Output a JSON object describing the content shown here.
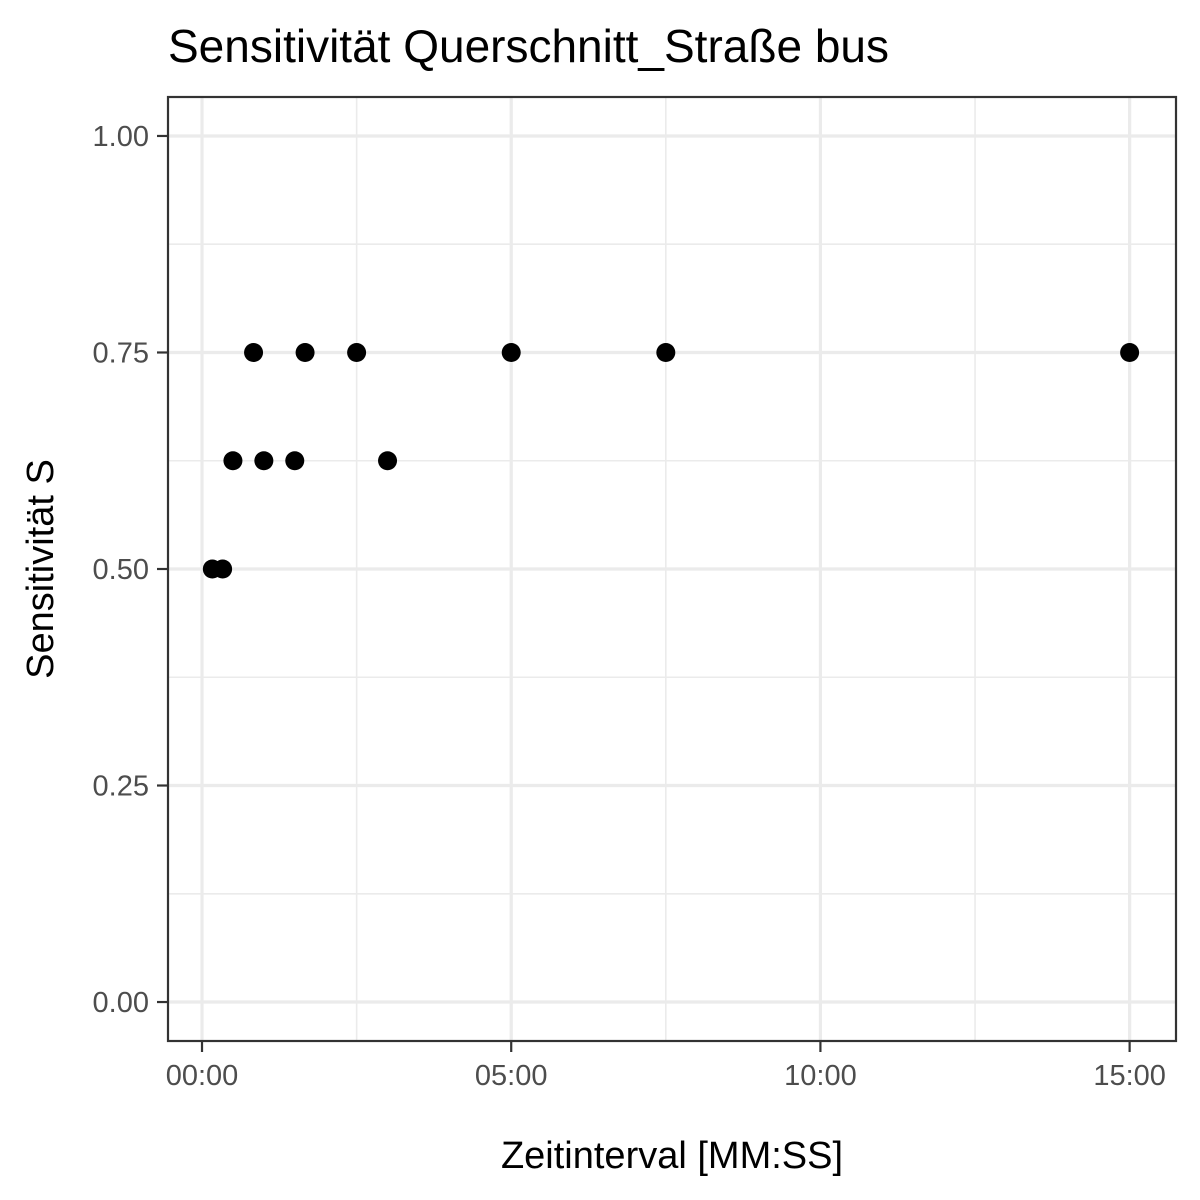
{
  "chart_data": {
    "type": "scatter",
    "title": "Sensitivität Querschnitt_Straße bus",
    "xlabel": "Zeitinterval [MM:SS]",
    "ylabel": "Sensitivität S",
    "x_unit": "MM:SS",
    "xlim": [
      "-00:33",
      "15:45"
    ],
    "ylim": [
      -0.045,
      1.045
    ],
    "x_ticks": [
      "00:00",
      "05:00",
      "10:00",
      "15:00"
    ],
    "x_minor_ticks": [
      "02:30",
      "07:30",
      "12:30"
    ],
    "y_ticks": [
      0.0,
      0.25,
      0.5,
      0.75,
      1.0
    ],
    "y_tick_labels": [
      "0.00",
      "0.25",
      "0.50",
      "0.75",
      "1.00"
    ],
    "y_minor_ticks": [
      0.125,
      0.375,
      0.625,
      0.875
    ],
    "grid": true,
    "legend": "none",
    "point_color": "#000000",
    "points": [
      {
        "x": "00:10",
        "y": 0.5
      },
      {
        "x": "00:20",
        "y": 0.5
      },
      {
        "x": "00:30",
        "y": 0.625
      },
      {
        "x": "00:50",
        "y": 0.75
      },
      {
        "x": "01:00",
        "y": 0.625
      },
      {
        "x": "01:30",
        "y": 0.625
      },
      {
        "x": "01:40",
        "y": 0.75
      },
      {
        "x": "02:30",
        "y": 0.75
      },
      {
        "x": "03:00",
        "y": 0.625
      },
      {
        "x": "05:00",
        "y": 0.75
      },
      {
        "x": "07:30",
        "y": 0.75
      },
      {
        "x": "15:00",
        "y": 0.75
      }
    ]
  }
}
